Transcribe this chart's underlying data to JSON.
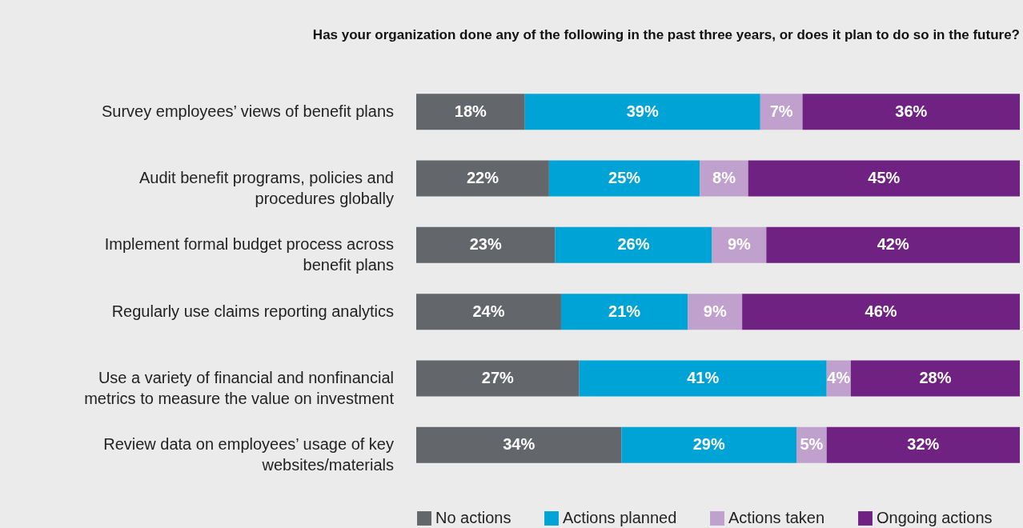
{
  "chart_data": {
    "type": "bar",
    "orientation": "horizontal",
    "stacked": true,
    "title": "Has your organization done any of the following in the past three years, or does it plan to do so in the future?",
    "categories": [
      "Survey employees’ views of benefit plans",
      "Audit benefit programs, policies and procedures globally",
      "Implement formal budget process across benefit plans",
      "Regularly use claims reporting analytics",
      "Use a variety of financial and nonfinancial metrics to measure the value on investment",
      "Review data on employees’ usage of key websites/materials"
    ],
    "series": [
      {
        "name": "No actions",
        "color": "#63666a",
        "values": [
          18,
          22,
          23,
          24,
          27,
          34
        ],
        "value_labels": [
          "18%",
          "22%",
          "23%",
          "24%",
          "27%",
          "34%"
        ]
      },
      {
        "name": "Actions planned",
        "color": "#00a3d6",
        "values": [
          39,
          25,
          26,
          21,
          41,
          29
        ],
        "value_labels": [
          "39%",
          "25%",
          "26%",
          "21%",
          "41%",
          "29%"
        ]
      },
      {
        "name": "Actions taken",
        "color": "#c0a0cc",
        "values": [
          7,
          8,
          9,
          9,
          4,
          5
        ],
        "value_labels": [
          "7%",
          "8%",
          "9%",
          "9%",
          "4%",
          "5%"
        ]
      },
      {
        "name": "Ongoing actions",
        "color": "#6f2282",
        "values": [
          36,
          45,
          42,
          46,
          28,
          32
        ],
        "value_labels": [
          "36%",
          "45%",
          "42%",
          "46%",
          "28%",
          "32%"
        ]
      }
    ],
    "tick_labels": "y",
    "legend": "bottom"
  }
}
